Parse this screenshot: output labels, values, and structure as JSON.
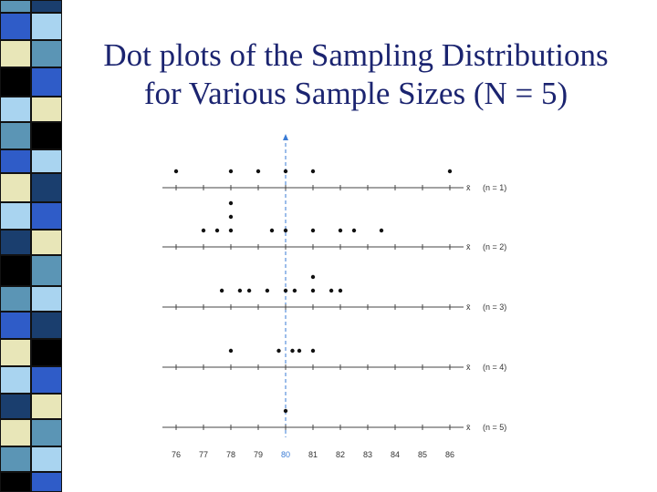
{
  "title": {
    "line1": "Dot plots of the Sampling Distributions",
    "line2": "for Various Sample Sizes (N = 5)"
  },
  "colors": {
    "title": "#1b2470",
    "mean_line": "#3a7bd5",
    "sidebar": [
      "#1a3e6e",
      "#5b95b5",
      "#2f5cc8",
      "#e8e6b8",
      "#a9d4f0",
      "#000000",
      "#ffffff"
    ]
  },
  "chart_data": {
    "type": "scatter",
    "title": "",
    "x_ticks": [
      76,
      77,
      78,
      79,
      80,
      81,
      82,
      83,
      84,
      85,
      86
    ],
    "x_tick_labels": [
      "76",
      "77",
      "78",
      "79",
      "80",
      "81",
      "82",
      "83",
      "84",
      "85",
      "86"
    ],
    "mean": 80,
    "xlim": [
      76,
      86
    ],
    "rows": [
      {
        "axis_label": "x̄",
        "label": "(n = 1)",
        "points": [
          76,
          78,
          79,
          80,
          81,
          86
        ]
      },
      {
        "axis_label": "x̄",
        "label": "(n = 2)",
        "points": [
          77,
          77.5,
          78,
          78,
          78,
          79.5,
          80,
          81,
          82,
          82.5,
          83.5
        ]
      },
      {
        "axis_label": "x̄",
        "label": "(n = 3)",
        "points": [
          77.67,
          78.33,
          78.67,
          79.33,
          80,
          80.33,
          81,
          81,
          81.67,
          82
        ]
      },
      {
        "axis_label": "x̄",
        "label": "(n = 4)",
        "points": [
          78,
          79.75,
          80.25,
          80.5,
          81
        ]
      },
      {
        "axis_label": "x̄",
        "label": "(n = 5)",
        "points": [
          80
        ]
      }
    ]
  }
}
